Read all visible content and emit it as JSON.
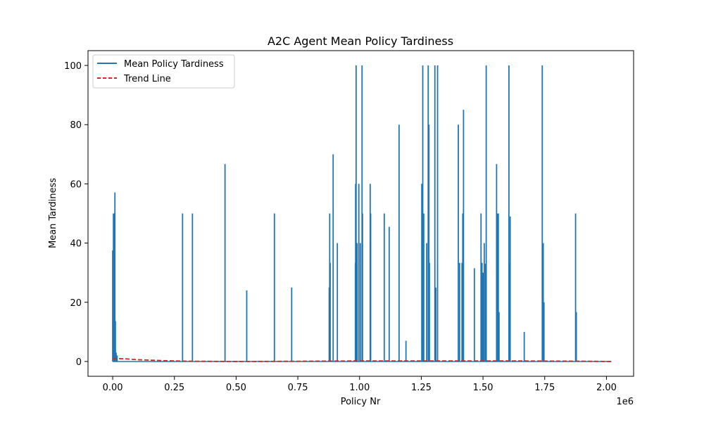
{
  "chart_data": {
    "type": "line",
    "title": "A2C Agent Mean Policy Tardiness",
    "xlabel": "Policy Nr",
    "ylabel": "Mean Tardiness",
    "x_offset_label": "1e6",
    "xlim": [
      -0.1,
      2.11
    ],
    "ylim": [
      -5,
      105
    ],
    "x_ticks": [
      0.0,
      0.25,
      0.5,
      0.75,
      1.0,
      1.25,
      1.5,
      1.75,
      2.0
    ],
    "x_tick_labels": [
      "0.00",
      "0.25",
      "0.50",
      "0.75",
      "1.00",
      "1.25",
      "1.50",
      "1.75",
      "2.00"
    ],
    "y_ticks": [
      0,
      20,
      40,
      60,
      80,
      100
    ],
    "y_tick_labels": [
      "0",
      "20",
      "40",
      "60",
      "80",
      "100"
    ],
    "grid": false,
    "legend_position": "upper-left",
    "series": [
      {
        "name": "Mean Policy Tardiness",
        "color": "#1f77b4",
        "style": "solid",
        "spikes": [
          [
            0.0,
            37.5
          ],
          [
            0.003,
            50.0
          ],
          [
            0.006,
            50.0
          ],
          [
            0.009,
            57.1
          ],
          [
            0.011,
            13.6
          ],
          [
            0.014,
            3.0
          ],
          [
            0.018,
            2.0
          ],
          [
            0.283,
            50.0
          ],
          [
            0.323,
            50.0
          ],
          [
            0.455,
            66.7
          ],
          [
            0.543,
            24.0
          ],
          [
            0.655,
            50.0
          ],
          [
            0.725,
            25.0
          ],
          [
            0.877,
            25.0
          ],
          [
            0.879,
            50.0
          ],
          [
            0.881,
            33.3
          ],
          [
            0.893,
            70.0
          ],
          [
            0.91,
            40.0
          ],
          [
            0.983,
            33.3
          ],
          [
            0.984,
            60.0
          ],
          [
            0.986,
            100.0
          ],
          [
            0.99,
            40.0
          ],
          [
            0.997,
            60.0
          ],
          [
            1.003,
            40.0
          ],
          [
            1.01,
            100.0
          ],
          [
            1.012,
            50.0
          ],
          [
            1.043,
            60.0
          ],
          [
            1.045,
            50.0
          ],
          [
            1.1,
            50.0
          ],
          [
            1.12,
            45.5
          ],
          [
            1.16,
            80.0
          ],
          [
            1.188,
            7.0
          ],
          [
            1.252,
            60.0
          ],
          [
            1.256,
            100.0
          ],
          [
            1.26,
            50.0
          ],
          [
            1.272,
            40.0
          ],
          [
            1.278,
            100.0
          ],
          [
            1.281,
            80.0
          ],
          [
            1.283,
            33.3
          ],
          [
            1.305,
            100.0
          ],
          [
            1.309,
            25.0
          ],
          [
            1.316,
            100.0
          ],
          [
            1.4,
            80.0
          ],
          [
            1.405,
            33.3
          ],
          [
            1.415,
            33.3
          ],
          [
            1.418,
            50.0
          ],
          [
            1.421,
            85.0
          ],
          [
            1.465,
            31.5
          ],
          [
            1.492,
            50.0
          ],
          [
            1.496,
            33.3
          ],
          [
            1.5,
            30.0
          ],
          [
            1.505,
            40.0
          ],
          [
            1.51,
            33.0
          ],
          [
            1.513,
            100.0
          ],
          [
            1.555,
            66.7
          ],
          [
            1.558,
            50.0
          ],
          [
            1.562,
            50.0
          ],
          [
            1.565,
            16.7
          ],
          [
            1.605,
            100.0
          ],
          [
            1.608,
            33.3
          ],
          [
            1.61,
            49.0
          ],
          [
            1.667,
            10.0
          ],
          [
            1.74,
            100.0
          ],
          [
            1.742,
            33.3
          ],
          [
            1.744,
            40.0
          ],
          [
            1.747,
            20.0
          ],
          [
            1.875,
            50.0
          ],
          [
            1.878,
            16.7
          ]
        ]
      },
      {
        "name": "Trend Line",
        "color": "#d62728",
        "style": "dashed",
        "x": [
          0.0,
          0.05,
          0.1,
          0.2,
          0.3,
          0.5,
          0.8,
          1.0,
          1.3,
          1.6,
          1.9,
          2.02
        ],
        "y": [
          1.0,
          0.9,
          0.6,
          0.3,
          0.1,
          0.0,
          0.1,
          0.2,
          0.2,
          0.2,
          0.1,
          0.0
        ]
      }
    ]
  }
}
